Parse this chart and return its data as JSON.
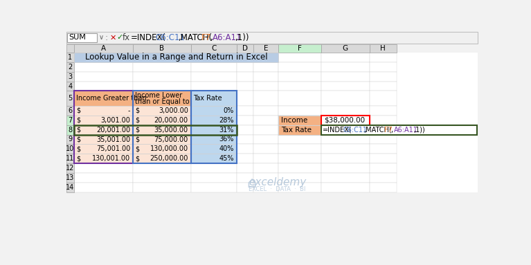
{
  "title": "Lookup Value in a Range and Return in Excel",
  "name_box": "SUM",
  "col_headers": [
    "A",
    "B",
    "C",
    "D",
    "E",
    "F",
    "G",
    "H"
  ],
  "table_data": [
    [
      "$",
      "-",
      "$",
      "3,000.00",
      "0%"
    ],
    [
      "$",
      "3,001.00",
      "$",
      "20,000.00",
      "28%"
    ],
    [
      "$",
      "20,001.00",
      "$",
      "35,000.00",
      "31%"
    ],
    [
      "$",
      "35,001.00",
      "$",
      "75,000.00",
      "36%"
    ],
    [
      "$",
      "75,001.00",
      "$",
      "130,000.00",
      "40%"
    ],
    [
      "$",
      "130,001.00",
      "$",
      "250,000.00",
      "45%"
    ]
  ],
  "col_header_bg": "#d9d9d9",
  "row_header_bg": "#d9d9d9",
  "title_bg": "#b8cce4",
  "table_header_bg": "#f4b183",
  "table_col_c_bg": "#bdd7ee",
  "table_body_bg": "#fce4d6",
  "active_col_bg": "#c6efce",
  "purple_border": "#7030a0",
  "blue_border": "#4472c4",
  "green_border": "#375623",
  "red_border": "#ff0000",
  "watermark_color": "#b0c4d8",
  "fig_bg": "#f2f2f2",
  "grid_line_color": "#d0d0d0",
  "toolbar_bg": "#f0f0f0",
  "formula_bar_bg": "#ffffff"
}
